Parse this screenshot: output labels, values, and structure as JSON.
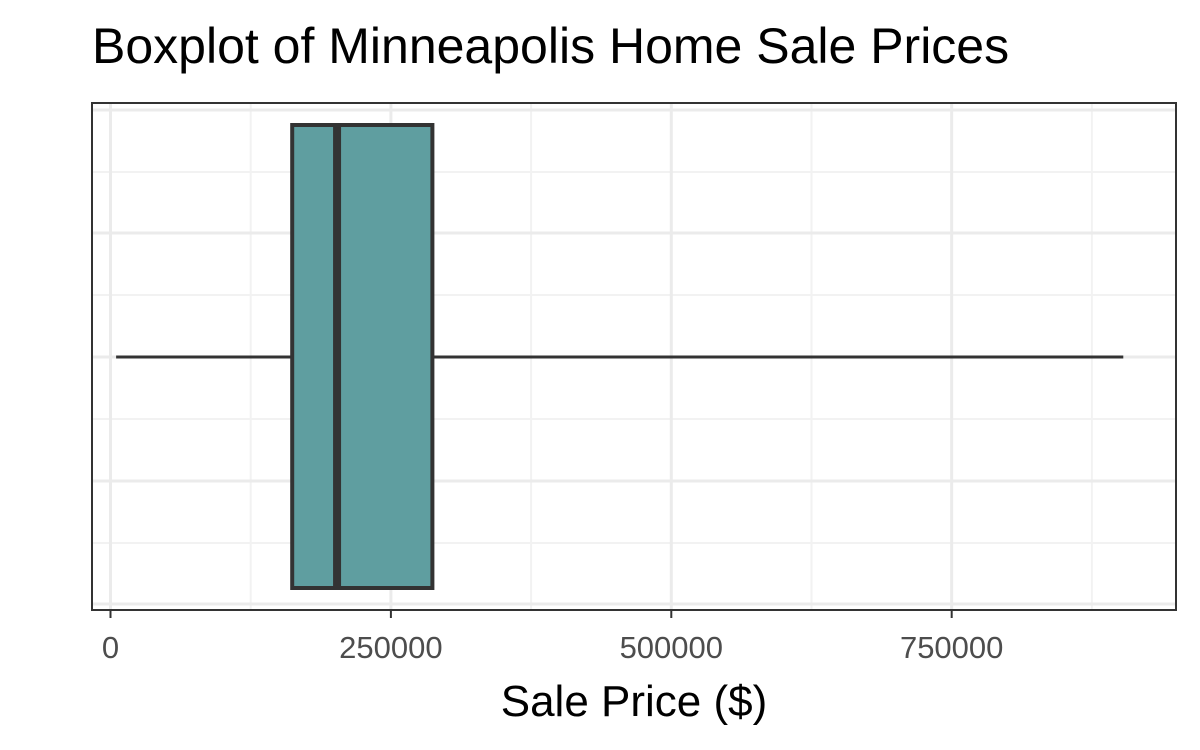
{
  "chart_data": {
    "type": "boxplot",
    "title": "Boxplot of Minneapolis Home Sale Prices",
    "xlabel": "Sale Price ($)",
    "ylabel": "",
    "xlim": [
      -16500,
      950000
    ],
    "x_ticks": [
      0,
      250000,
      500000,
      750000
    ],
    "x_tick_labels": [
      "0",
      "250000",
      "500000",
      "750000"
    ],
    "x_minor_ticks": [
      125000,
      375000,
      625000,
      875000
    ],
    "grid": true,
    "orientation": "horizontal",
    "series": [
      {
        "name": "Sale Price",
        "whisker_low": 5000,
        "q1": 162000,
        "median": 202000,
        "q3": 287000,
        "whisker_high": 903000
      }
    ],
    "colors": {
      "box_fill": "#5f9ea0",
      "box_stroke": "#333333",
      "grid_major": "#ebebeb",
      "grid_minor": "#f2f2f2",
      "panel_border": "#333333",
      "tick_label": "#4d4d4d"
    }
  }
}
